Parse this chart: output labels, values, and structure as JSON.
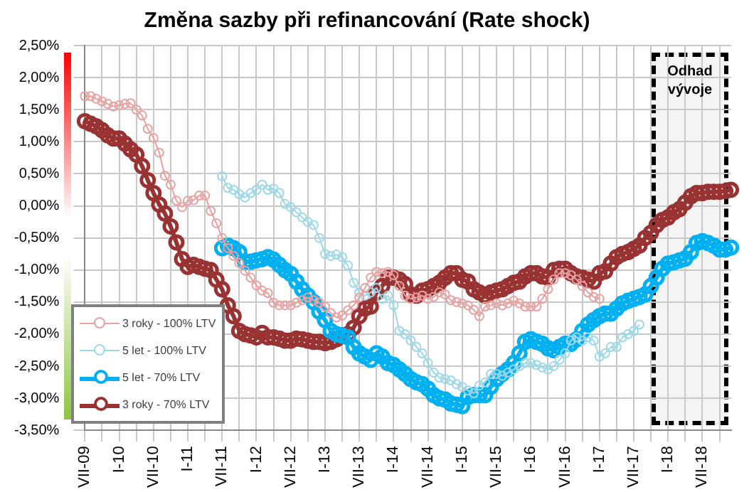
{
  "chart_data": {
    "type": "line",
    "title": "Změna sazby při refinancování (Rate shock)",
    "categories": [
      "VII-09",
      null,
      null,
      null,
      null,
      null,
      "I-10",
      null,
      null,
      null,
      null,
      null,
      "VII-10",
      null,
      null,
      null,
      null,
      null,
      "I-11",
      null,
      null,
      null,
      null,
      null,
      "VII-11",
      null,
      null,
      null,
      null,
      null,
      "I-12",
      null,
      null,
      null,
      null,
      null,
      "VII-12",
      null,
      null,
      null,
      null,
      null,
      "I-13",
      null,
      null,
      null,
      null,
      null,
      "VII-13",
      null,
      null,
      null,
      null,
      null,
      "I-14",
      null,
      null,
      null,
      null,
      null,
      "VII-14",
      null,
      null,
      null,
      null,
      null,
      "I-15",
      null,
      null,
      null,
      null,
      null,
      "VII-15",
      null,
      null,
      null,
      null,
      null,
      "I-16",
      null,
      null,
      null,
      null,
      null,
      "VII-16",
      null,
      null,
      null,
      null,
      null,
      "I-17",
      null,
      null,
      null,
      null,
      null,
      "VII-17",
      null,
      null,
      null,
      null,
      null,
      "I-18",
      null,
      null,
      null,
      null,
      null,
      "VII-18",
      null,
      null,
      null,
      null,
      null
    ],
    "series": [
      {
        "name": "3 roky - 100% LTV",
        "color": "#e8a0a0",
        "values": [
          1.71,
          1.71,
          1.67,
          1.63,
          1.59,
          1.55,
          1.57,
          1.59,
          1.6,
          1.5,
          1.41,
          1.2,
          1.06,
          0.83,
          0.47,
          0.33,
          0.08,
          -0.02,
          0.08,
          0.09,
          0.16,
          0.16,
          -0.08,
          -0.27,
          -0.5,
          -0.66,
          -0.78,
          -0.89,
          -1.01,
          -1.12,
          -1.24,
          -1.32,
          -1.36,
          -1.51,
          -1.55,
          -1.55,
          -1.55,
          -1.51,
          -1.47,
          -1.43,
          -1.47,
          -1.51,
          -1.57,
          -1.67,
          -1.74,
          -1.71,
          -1.63,
          -1.55,
          -1.43,
          -1.28,
          -1.12,
          -1.03,
          -1.05,
          -1.03,
          -1.08,
          -1.25,
          -1.4,
          -1.45,
          -1.43,
          -1.4,
          -1.45,
          -1.42,
          -1.35,
          -1.38,
          -1.47,
          -1.5,
          -1.52,
          -1.55,
          -1.62,
          -1.72,
          -1.57,
          -1.55,
          -1.52,
          -1.55,
          -1.52,
          -1.48,
          -1.52,
          -1.57,
          -1.57,
          -1.57,
          -1.45,
          -1.3,
          -1.15,
          -1.05,
          -1.05,
          -1.08,
          -1.15,
          -1.25,
          -1.35,
          -1.42,
          -1.45,
          null,
          null,
          null,
          null,
          null,
          null,
          null,
          null,
          null,
          null,
          null,
          null,
          null,
          null,
          null,
          null,
          null,
          null,
          null,
          null,
          null,
          null,
          null
        ]
      },
      {
        "name": "5 let - 100% LTV",
        "color": "#9ad8ea",
        "values": [
          null,
          null,
          null,
          null,
          null,
          null,
          null,
          null,
          null,
          null,
          null,
          null,
          null,
          null,
          null,
          null,
          null,
          null,
          null,
          null,
          null,
          null,
          null,
          null,
          0.46,
          0.28,
          0.25,
          0.18,
          0.13,
          0.2,
          0.25,
          0.33,
          0.25,
          0.27,
          0.2,
          0.03,
          -0.02,
          -0.1,
          -0.18,
          -0.25,
          -0.3,
          -0.5,
          -0.75,
          -0.78,
          -0.76,
          -0.8,
          -0.93,
          -1.2,
          -1.35,
          -1.4,
          -1.35,
          -1.28,
          -1.45,
          -1.4,
          -1.55,
          -1.95,
          -2.0,
          -2.1,
          -2.2,
          -2.3,
          -2.45,
          -2.6,
          -2.68,
          -2.7,
          -2.72,
          -2.78,
          -2.82,
          -2.88,
          -2.92,
          -2.8,
          -2.75,
          -2.62,
          -2.62,
          -2.65,
          -2.6,
          -2.55,
          -2.5,
          -2.45,
          -2.45,
          -2.48,
          -2.52,
          -2.55,
          -2.5,
          -2.4,
          -2.3,
          -2.1,
          -2.05,
          -2.1,
          -2.05,
          -2.1,
          -2.35,
          -2.3,
          -2.2,
          -2.2,
          -2.05,
          -2.0,
          -1.95,
          -1.85,
          null,
          null,
          null,
          null,
          null,
          null,
          null,
          null,
          null,
          null,
          null,
          null,
          null,
          null,
          null,
          null
        ]
      },
      {
        "name": "5 let - 70% LTV",
        "color": "#00b0f0",
        "values": [
          null,
          null,
          null,
          null,
          null,
          null,
          null,
          null,
          null,
          null,
          null,
          null,
          null,
          null,
          null,
          null,
          null,
          null,
          null,
          null,
          null,
          null,
          null,
          null,
          -0.66,
          -0.62,
          -0.66,
          -0.72,
          -0.87,
          -0.87,
          -0.85,
          -0.83,
          -0.8,
          -0.84,
          -0.92,
          -1.0,
          -1.06,
          -1.18,
          -1.3,
          -1.4,
          -1.5,
          -1.65,
          -1.78,
          -1.95,
          -2.0,
          -2.02,
          -2.05,
          -2.2,
          -2.3,
          -2.35,
          -2.4,
          -2.3,
          -2.35,
          -2.45,
          -2.48,
          -2.55,
          -2.62,
          -2.7,
          -2.75,
          -2.78,
          -2.85,
          -2.95,
          -3.0,
          -3.02,
          -3.08,
          -3.1,
          -3.12,
          -2.98,
          -2.95,
          -2.95,
          -2.95,
          -2.82,
          -2.7,
          -2.62,
          -2.55,
          -2.45,
          -2.3,
          -2.12,
          -2.08,
          -2.12,
          -2.15,
          -2.22,
          -2.25,
          -2.2,
          -2.15,
          -2.15,
          -2.08,
          -1.95,
          -1.85,
          -1.78,
          -1.72,
          -1.68,
          -1.68,
          -1.6,
          -1.52,
          -1.48,
          -1.45,
          -1.42,
          -1.38,
          -1.25,
          -1.12,
          -0.98,
          -0.9,
          -0.88,
          -0.85,
          -0.82,
          -0.72,
          -0.58,
          -0.55,
          -0.58,
          -0.62,
          -0.68,
          -0.68,
          -0.65
        ]
      },
      {
        "name": "3 roky - 70% LTV",
        "color": "#993333",
        "values": [
          1.32,
          1.28,
          1.24,
          1.18,
          1.1,
          1.05,
          1.05,
          0.97,
          0.88,
          0.8,
          0.62,
          0.4,
          0.2,
          0.02,
          -0.12,
          -0.32,
          -0.57,
          -0.83,
          -0.95,
          -0.92,
          -0.95,
          -0.98,
          -1.0,
          -1.15,
          -1.3,
          -1.55,
          -1.72,
          -1.95,
          -2.0,
          -2.02,
          -2.05,
          -1.98,
          -2.05,
          -2.05,
          -2.07,
          -2.1,
          -2.1,
          -2.07,
          -2.08,
          -2.1,
          -2.12,
          -2.12,
          -2.14,
          -2.12,
          -2.08,
          -2.02,
          -2.0,
          -1.9,
          -1.72,
          -1.6,
          -1.57,
          -1.35,
          -1.25,
          -1.12,
          -1.12,
          -1.15,
          -1.22,
          -1.38,
          -1.4,
          -1.32,
          -1.3,
          -1.25,
          -1.2,
          -1.12,
          -1.05,
          -1.05,
          -1.15,
          -1.18,
          -1.3,
          -1.35,
          -1.4,
          -1.35,
          -1.32,
          -1.3,
          -1.25,
          -1.2,
          -1.18,
          -1.1,
          -1.05,
          -1.05,
          -1.1,
          -1.12,
          -1.0,
          -0.98,
          -0.98,
          -1.05,
          -1.1,
          -1.12,
          -1.15,
          -1.18,
          -1.05,
          -1.02,
          -0.9,
          -0.8,
          -0.75,
          -0.72,
          -0.67,
          -0.62,
          -0.5,
          -0.42,
          -0.3,
          -0.22,
          -0.18,
          -0.1,
          -0.05,
          0.05,
          0.15,
          0.2,
          0.2,
          0.22,
          0.22,
          0.22,
          0.23,
          0.25
        ]
      }
    ],
    "ylim": [
      -3.5,
      2.5
    ],
    "yticks": [
      {
        "value": -3.5,
        "label": "-3,50%"
      },
      {
        "value": -3,
        "label": "-3,00%"
      },
      {
        "value": -2.5,
        "label": "-2,50%"
      },
      {
        "value": -2,
        "label": "-2,00%"
      },
      {
        "value": -1.5,
        "label": "-1,50%"
      },
      {
        "value": -1,
        "label": "-1,00%"
      },
      {
        "value": -0.5,
        "label": "-0,50%"
      },
      {
        "value": 0,
        "label": "0,00%"
      },
      {
        "value": 0.5,
        "label": "0,50%"
      },
      {
        "value": 1,
        "label": "1,00%"
      },
      {
        "value": 1.5,
        "label": "1,50%"
      },
      {
        "value": 2,
        "label": "2,00%"
      },
      {
        "value": 2.5,
        "label": "2,50%"
      }
    ],
    "annotations": [
      "Odhad vývoje"
    ],
    "grid": true,
    "legend": "bottom left",
    "marker": "circle",
    "line_style": "solid"
  }
}
